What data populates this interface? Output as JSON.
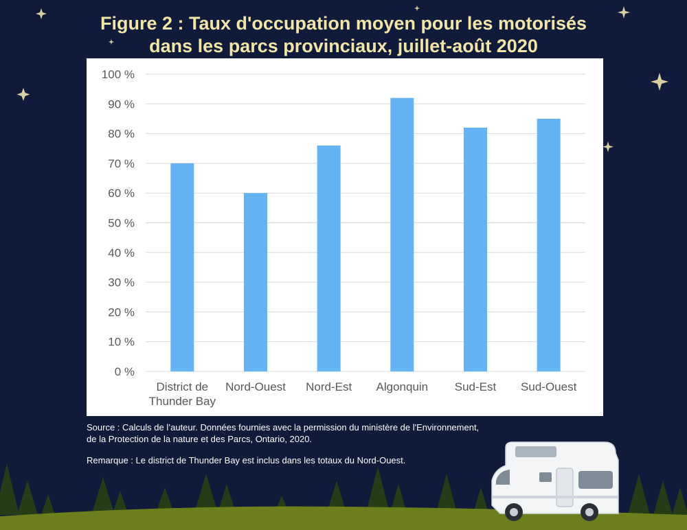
{
  "figure": {
    "title_line1": "Figure 2 : Taux d'occupation moyen pour les motorisés",
    "title_line2": "dans les parcs provinciaux, juillet-août 2020"
  },
  "chart_data": {
    "type": "bar",
    "categories": [
      [
        "District de",
        "Thunder Bay"
      ],
      [
        "Nord-Ouest"
      ],
      [
        "Nord-Est"
      ],
      [
        "Algonquin"
      ],
      [
        "Sud-Est"
      ],
      [
        "Sud-Ouest"
      ]
    ],
    "values": [
      70,
      60,
      76,
      92,
      82,
      85
    ],
    "ylim": [
      0,
      100
    ],
    "yticks": [
      0,
      10,
      20,
      30,
      40,
      50,
      60,
      70,
      80,
      90,
      100
    ],
    "ytick_labels": [
      "0 %",
      "10 %",
      "20 %",
      "30 %",
      "40 %",
      "50 %",
      "60 %",
      "70 %",
      "80 %",
      "90 %",
      "100 %"
    ],
    "grid": true,
    "legend": "none",
    "bar_color": "#63b3f5"
  },
  "notes": {
    "source_line1": "Source : Calculs de l’auteur. Données fournies avec la permission du ministère de l'Environnement,",
    "source_line2": "de la Protection de la nature et des Parcs, Ontario, 2020.",
    "remark": "Remarque : Le district de Thunder Bay est inclus dans les totaux du Nord-Ouest."
  },
  "colors": {
    "background": "#101a3b",
    "title": "#f2e6a6",
    "grass": "#6d7f1c",
    "trees": "#243d17",
    "gridline": "#d9d9d9",
    "axis_text": "#595959"
  }
}
